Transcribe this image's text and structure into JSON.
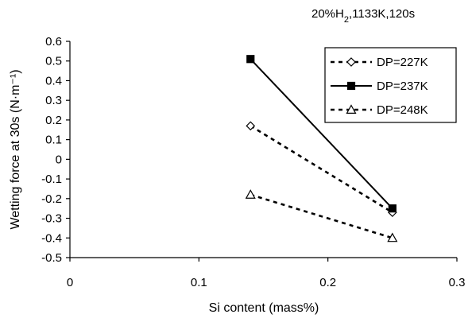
{
  "chart_data": {
    "type": "line",
    "conditions": {
      "prefix": "20%H",
      "subscript": "2",
      "suffix": ",1133K,120s"
    },
    "xlabel": "Si content (mass%)",
    "ylabel": "Wetting force at 30s (N·m⁻¹)",
    "xlim": [
      0,
      0.3
    ],
    "ylim": [
      -0.5,
      0.6
    ],
    "x_ticks": [
      "0",
      "0.1",
      "0.2",
      "0.3"
    ],
    "y_ticks": [
      "0.6",
      "0.5",
      "0.4",
      "0.3",
      "0.2",
      "0.1",
      "0",
      "-0.1",
      "-0.2",
      "-0.3",
      "-0.4",
      "-0.5"
    ],
    "legend_position": "top-right",
    "series": [
      {
        "name": "DP=227K",
        "marker": "diamond",
        "line": "dashed",
        "color": "#000000",
        "points": [
          {
            "x": 0.14,
            "y": 0.17
          },
          {
            "x": 0.25,
            "y": -0.27
          }
        ]
      },
      {
        "name": "DP=237K",
        "marker": "square",
        "line": "solid",
        "color": "#000000",
        "points": [
          {
            "x": 0.14,
            "y": 0.51
          },
          {
            "x": 0.25,
            "y": -0.25
          }
        ]
      },
      {
        "name": "DP=248K",
        "marker": "triangle",
        "line": "dashed",
        "color": "#000000",
        "points": [
          {
            "x": 0.14,
            "y": -0.18
          },
          {
            "x": 0.25,
            "y": -0.4
          }
        ]
      }
    ]
  }
}
